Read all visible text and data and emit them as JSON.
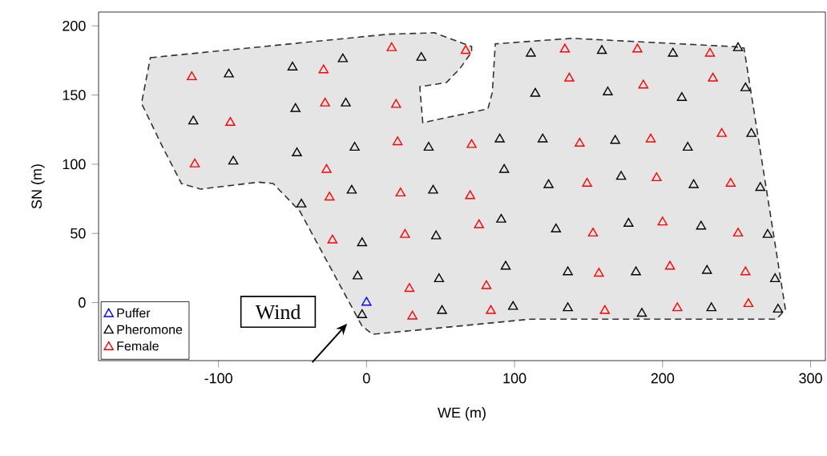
{
  "chart_data": {
    "type": "scatter",
    "xlabel": "WE (m)",
    "ylabel": "SN (m)",
    "xlim": [
      -181,
      310
    ],
    "ylim": [
      -42,
      210
    ],
    "xticks": [
      -100,
      0,
      100,
      200,
      300
    ],
    "yticks": [
      0,
      50,
      100,
      150,
      200
    ],
    "grid": false,
    "legend": "bottom left",
    "marker": "triangle",
    "annotations": [
      "Wind"
    ],
    "series": [
      {
        "type": "area",
        "color": "#e5e5e5",
        "line_style": "dashed",
        "marker": "none",
        "x": [
          -146,
          15,
          46,
          71,
          71,
          63,
          54,
          36,
          38,
          82,
          85,
          87,
          139,
          248,
          255,
          283,
          277,
          111,
          4,
          -3,
          -45,
          -63,
          -73,
          -112,
          -125,
          -138,
          -152,
          -146
        ],
        "values": [
          177,
          194,
          195,
          185,
          181,
          169,
          159,
          156,
          130,
          140,
          152,
          187,
          191,
          185,
          184,
          -5,
          -12,
          -12,
          -23,
          -17,
          66,
          86,
          87,
          82,
          86,
          113,
          144,
          177
        ]
      },
      {
        "name": "Puffer",
        "color": "#0000ff",
        "x": [
          0
        ],
        "values": [
          0
        ]
      },
      {
        "name": "Pheromone",
        "color": "#000000",
        "x": [
          -93,
          -50,
          -16,
          37,
          111,
          159,
          207,
          251,
          -117,
          -48,
          -14,
          114,
          163,
          213,
          256,
          -90,
          -47,
          -8,
          42,
          90,
          119,
          168,
          217,
          260,
          -10,
          45,
          93,
          123,
          172,
          221,
          266,
          -44,
          -3,
          47,
          91,
          128,
          177,
          226,
          271,
          -6,
          49,
          94,
          136,
          182,
          230,
          276,
          -3,
          51,
          99,
          136,
          186,
          233,
          278
        ],
        "values": [
          165,
          170,
          176,
          177,
          180,
          182,
          180,
          184,
          131,
          140,
          144,
          151,
          152,
          148,
          155,
          102,
          108,
          112,
          112,
          118,
          118,
          117,
          112,
          122,
          81,
          81,
          96,
          85,
          91,
          85,
          83,
          71,
          43,
          48,
          60,
          53,
          57,
          55,
          49,
          19,
          17,
          26,
          22,
          22,
          23,
          17,
          -9,
          -6,
          -3,
          -4,
          -8,
          -4,
          -5
        ]
      },
      {
        "name": "Female",
        "color": "#ff0000",
        "x": [
          -118,
          -29,
          17,
          67,
          134,
          183,
          232,
          -92,
          -28,
          20,
          137,
          187,
          234,
          -116,
          -27,
          21,
          71,
          144,
          192,
          240,
          -25,
          23,
          70,
          149,
          196,
          246,
          -23,
          26,
          76,
          153,
          200,
          251,
          29,
          81,
          157,
          205,
          256,
          31,
          84,
          161,
          210,
          258
        ],
        "values": [
          163,
          168,
          184,
          182,
          183,
          183,
          180,
          130,
          144,
          143,
          162,
          157,
          162,
          100,
          96,
          116,
          114,
          115,
          118,
          122,
          76,
          79,
          77,
          86,
          90,
          86,
          45,
          49,
          56,
          50,
          58,
          50,
          10,
          12,
          21,
          26,
          22,
          -10,
          -6,
          -6,
          -4,
          -1
        ]
      }
    ]
  }
}
